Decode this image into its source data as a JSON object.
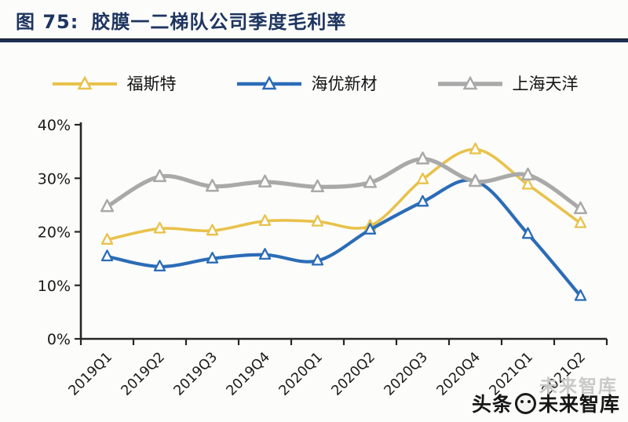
{
  "header": {
    "figure_label": "图 75:",
    "title": "胶膜一二梯队公司季度毛利率"
  },
  "watermark": {
    "prefix": "头条",
    "suffix": "未来智库",
    "ghost": "未来智库"
  },
  "chart_data": {
    "type": "line",
    "title": "胶膜一二梯队公司季度毛利率",
    "categories": [
      "2019Q1",
      "2019Q2",
      "2019Q3",
      "2019Q4",
      "2020Q1",
      "2020Q2",
      "2020Q3",
      "2020Q4",
      "2021Q1",
      "2021Q2"
    ],
    "series": [
      {
        "name": "福斯特",
        "color": "#E8C24A",
        "values": [
          18.5,
          20.6,
          20.2,
          22.0,
          21.9,
          21.1,
          29.8,
          35.4,
          28.8,
          21.6
        ]
      },
      {
        "name": "海优新材",
        "color": "#2B6CB7",
        "values": [
          15.4,
          13.5,
          15.0,
          15.7,
          14.6,
          20.4,
          25.6,
          29.5,
          19.6,
          8.0
        ]
      },
      {
        "name": "上海天洋",
        "color": "#A9A9A9",
        "values": [
          24.7,
          30.3,
          28.5,
          29.3,
          28.4,
          29.2,
          33.6,
          29.4,
          30.6,
          24.3
        ]
      }
    ],
    "ylabel": "",
    "xlabel": "",
    "ylim": [
      0,
      40
    ],
    "ytick_step": 10,
    "ytick_labels": [
      "0%",
      "10%",
      "20%",
      "30%",
      "40%"
    ],
    "legend_position": "top",
    "grid": false,
    "smoothed": true,
    "marker": "open-triangle",
    "axis_color": "#262626",
    "label_color": "#1a1a1a"
  }
}
